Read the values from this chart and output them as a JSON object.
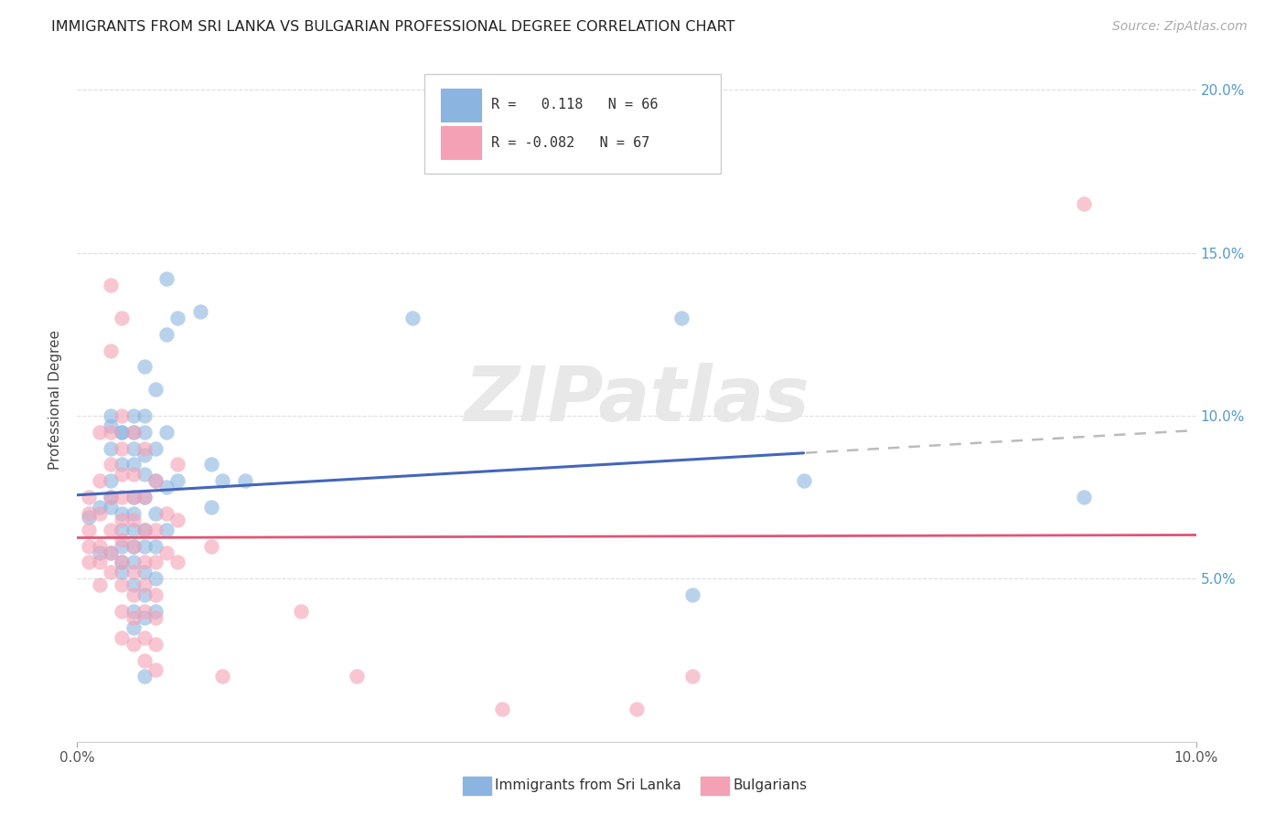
{
  "title": "IMMIGRANTS FROM SRI LANKA VS BULGARIAN PROFESSIONAL DEGREE CORRELATION CHART",
  "source": "Source: ZipAtlas.com",
  "xlabel_blue": "Immigrants from Sri Lanka",
  "xlabel_pink": "Bulgarians",
  "ylabel": "Professional Degree",
  "r_blue": 0.118,
  "n_blue": 66,
  "r_pink": -0.082,
  "n_pink": 67,
  "xlim": [
    0.0,
    0.1
  ],
  "ylim": [
    0.0,
    0.21
  ],
  "yticks": [
    0.05,
    0.1,
    0.15,
    0.2
  ],
  "color_blue": "#8BB4E0",
  "color_pink": "#F4A0B5",
  "trend_blue": "#4466BB",
  "trend_pink": "#E05575",
  "trend_ext_color": "#BBBBBB",
  "watermark": "ZIPatlas",
  "background": "#FFFFFF",
  "blue_scatter": [
    [
      0.001,
      0.069
    ],
    [
      0.002,
      0.072
    ],
    [
      0.002,
      0.058
    ],
    [
      0.003,
      0.058
    ],
    [
      0.003,
      0.072
    ],
    [
      0.003,
      0.08
    ],
    [
      0.003,
      0.075
    ],
    [
      0.003,
      0.09
    ],
    [
      0.003,
      0.097
    ],
    [
      0.003,
      0.1
    ],
    [
      0.004,
      0.095
    ],
    [
      0.004,
      0.085
    ],
    [
      0.004,
      0.095
    ],
    [
      0.004,
      0.07
    ],
    [
      0.004,
      0.065
    ],
    [
      0.004,
      0.06
    ],
    [
      0.004,
      0.055
    ],
    [
      0.004,
      0.052
    ],
    [
      0.005,
      0.1
    ],
    [
      0.005,
      0.095
    ],
    [
      0.005,
      0.09
    ],
    [
      0.005,
      0.085
    ],
    [
      0.005,
      0.075
    ],
    [
      0.005,
      0.07
    ],
    [
      0.005,
      0.065
    ],
    [
      0.005,
      0.06
    ],
    [
      0.005,
      0.055
    ],
    [
      0.005,
      0.048
    ],
    [
      0.005,
      0.04
    ],
    [
      0.005,
      0.035
    ],
    [
      0.006,
      0.115
    ],
    [
      0.006,
      0.1
    ],
    [
      0.006,
      0.095
    ],
    [
      0.006,
      0.088
    ],
    [
      0.006,
      0.082
    ],
    [
      0.006,
      0.075
    ],
    [
      0.006,
      0.065
    ],
    [
      0.006,
      0.06
    ],
    [
      0.006,
      0.052
    ],
    [
      0.006,
      0.045
    ],
    [
      0.006,
      0.038
    ],
    [
      0.006,
      0.02
    ],
    [
      0.007,
      0.108
    ],
    [
      0.007,
      0.09
    ],
    [
      0.007,
      0.08
    ],
    [
      0.007,
      0.07
    ],
    [
      0.007,
      0.06
    ],
    [
      0.007,
      0.05
    ],
    [
      0.007,
      0.04
    ],
    [
      0.008,
      0.142
    ],
    [
      0.008,
      0.125
    ],
    [
      0.008,
      0.095
    ],
    [
      0.008,
      0.078
    ],
    [
      0.008,
      0.065
    ],
    [
      0.009,
      0.13
    ],
    [
      0.009,
      0.08
    ],
    [
      0.011,
      0.132
    ],
    [
      0.012,
      0.085
    ],
    [
      0.012,
      0.072
    ],
    [
      0.013,
      0.08
    ],
    [
      0.015,
      0.08
    ],
    [
      0.03,
      0.13
    ],
    [
      0.054,
      0.13
    ],
    [
      0.055,
      0.045
    ],
    [
      0.065,
      0.08
    ],
    [
      0.09,
      0.075
    ]
  ],
  "pink_scatter": [
    [
      0.001,
      0.055
    ],
    [
      0.001,
      0.06
    ],
    [
      0.001,
      0.065
    ],
    [
      0.001,
      0.07
    ],
    [
      0.001,
      0.075
    ],
    [
      0.002,
      0.095
    ],
    [
      0.002,
      0.08
    ],
    [
      0.002,
      0.07
    ],
    [
      0.002,
      0.06
    ],
    [
      0.002,
      0.055
    ],
    [
      0.002,
      0.048
    ],
    [
      0.003,
      0.14
    ],
    [
      0.003,
      0.12
    ],
    [
      0.003,
      0.095
    ],
    [
      0.003,
      0.085
    ],
    [
      0.003,
      0.075
    ],
    [
      0.003,
      0.065
    ],
    [
      0.003,
      0.058
    ],
    [
      0.003,
      0.052
    ],
    [
      0.004,
      0.13
    ],
    [
      0.004,
      0.1
    ],
    [
      0.004,
      0.09
    ],
    [
      0.004,
      0.082
    ],
    [
      0.004,
      0.075
    ],
    [
      0.004,
      0.068
    ],
    [
      0.004,
      0.062
    ],
    [
      0.004,
      0.055
    ],
    [
      0.004,
      0.048
    ],
    [
      0.004,
      0.04
    ],
    [
      0.004,
      0.032
    ],
    [
      0.005,
      0.095
    ],
    [
      0.005,
      0.082
    ],
    [
      0.005,
      0.075
    ],
    [
      0.005,
      0.068
    ],
    [
      0.005,
      0.06
    ],
    [
      0.005,
      0.052
    ],
    [
      0.005,
      0.045
    ],
    [
      0.005,
      0.038
    ],
    [
      0.005,
      0.03
    ],
    [
      0.006,
      0.09
    ],
    [
      0.006,
      0.075
    ],
    [
      0.006,
      0.065
    ],
    [
      0.006,
      0.055
    ],
    [
      0.006,
      0.048
    ],
    [
      0.006,
      0.04
    ],
    [
      0.006,
      0.032
    ],
    [
      0.006,
      0.025
    ],
    [
      0.007,
      0.08
    ],
    [
      0.007,
      0.065
    ],
    [
      0.007,
      0.055
    ],
    [
      0.007,
      0.045
    ],
    [
      0.007,
      0.038
    ],
    [
      0.007,
      0.03
    ],
    [
      0.007,
      0.022
    ],
    [
      0.008,
      0.07
    ],
    [
      0.008,
      0.058
    ],
    [
      0.009,
      0.085
    ],
    [
      0.009,
      0.068
    ],
    [
      0.009,
      0.055
    ],
    [
      0.012,
      0.06
    ],
    [
      0.013,
      0.02
    ],
    [
      0.02,
      0.04
    ],
    [
      0.025,
      0.02
    ],
    [
      0.038,
      0.01
    ],
    [
      0.05,
      0.01
    ],
    [
      0.055,
      0.02
    ],
    [
      0.09,
      0.165
    ]
  ]
}
